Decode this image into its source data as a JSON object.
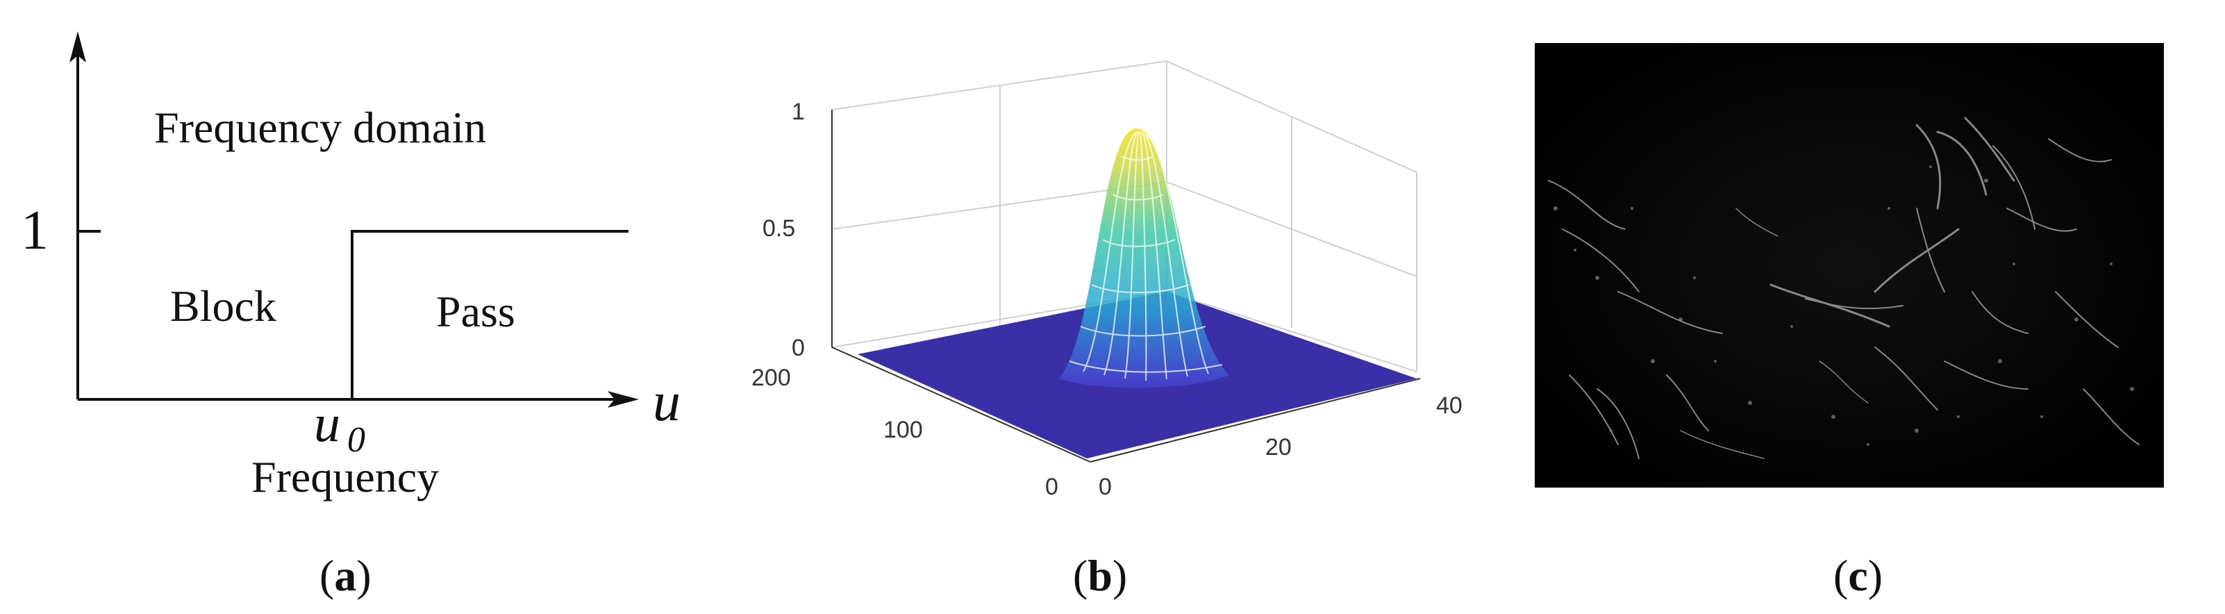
{
  "panel_a": {
    "title": "Frequency domain",
    "y_tick": "1",
    "block_label": "Block",
    "pass_label": "Pass",
    "axis_var": "u",
    "cutoff_base": "u",
    "cutoff_sub": "0",
    "x_label": "Frequency",
    "caption_letter": "a"
  },
  "panel_b": {
    "z_ticks": [
      "0",
      "0.5",
      "1"
    ],
    "left_ticks": [
      "0",
      "100",
      "200"
    ],
    "right_ticks": [
      "0",
      "20",
      "40"
    ],
    "surface_color": "#3b2fa8",
    "caption_letter": "b"
  },
  "panel_c": {
    "caption_letter": "c"
  },
  "chart_data": {
    "type": "surface",
    "description_of_function": "Gaussian peak",
    "peak_value": 0.92,
    "zlim": [
      0,
      1
    ],
    "x_range": [
      0,
      40
    ],
    "y_range": [
      0,
      200
    ]
  }
}
